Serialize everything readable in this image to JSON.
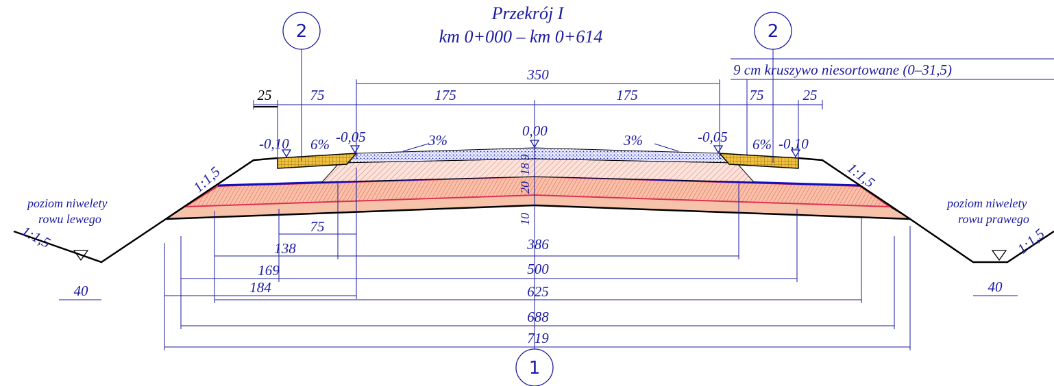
{
  "title": [
    "Przekrój I",
    "km 0+000 – km 0+614"
  ],
  "callouts": [
    "2",
    "2",
    "1"
  ],
  "layer_note": "9 cm kruszywo niesortowane (0–31,5)",
  "top_dimensions": [
    350,
    25,
    75,
    175,
    175,
    75,
    25
  ],
  "elevations": [
    "-0,10",
    "-0,05",
    "0,00",
    "-0,05",
    "-0,10"
  ],
  "slopes": [
    "6%",
    "3%",
    "3%",
    "6%"
  ],
  "batter_slopes": [
    "1:1,5",
    "1:1,5",
    "1:1,5",
    "1:1,5"
  ],
  "layer_thicknesses": [
    9,
    18,
    20,
    10
  ],
  "ditch_labels": {
    "left": [
      "poziom niwelety",
      "rowu lewego"
    ],
    "right": [
      "poziom niwelety",
      "rowu prawego"
    ]
  },
  "ditch_widths": [
    40,
    40
  ],
  "bottom_dimensions": [
    75,
    138,
    386,
    169,
    500,
    184,
    625,
    688,
    719
  ]
}
